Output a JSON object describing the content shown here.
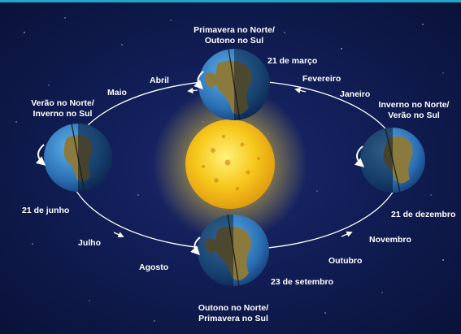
{
  "seasons": {
    "top": "Primavera no Norte/\nOutono no Sul",
    "left": "Verão no Norte/\nInverno no Sul",
    "right": "Inverno no Norte/\nVerão no Sul",
    "bottom": "Outono no Norte/\nPrimavera no Sul"
  },
  "dates": {
    "march": "21 de março",
    "june": "21 de junho",
    "december": "21 de dezembro",
    "september": "23 de setembro"
  },
  "months": {
    "maio": "Maio",
    "abril": "Abril",
    "fevereiro": "Fevereiro",
    "janeiro": "Janeiro",
    "julho": "Julho",
    "agosto": "Agosto",
    "outubro": "Outubro",
    "novembro": "Novembro"
  },
  "colors": {
    "orbit": "#ffffff",
    "sun": "#f5c518",
    "ocean": "#2f7fc4",
    "land": "#8a7a3e",
    "background": "#111d55"
  }
}
